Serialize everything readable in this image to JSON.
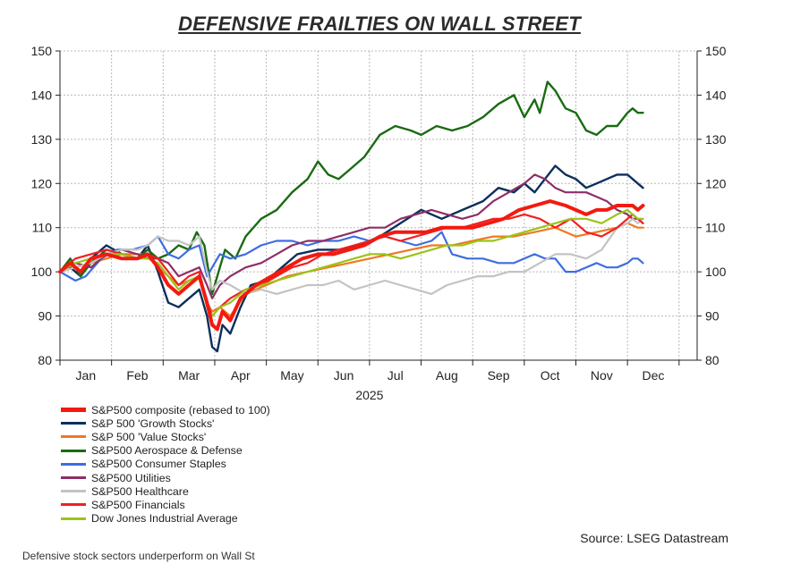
{
  "title": "DEFENSIVE FRAILTIES ON WALL STREET",
  "source": "Source: LSEG Datastream",
  "caption": "Defensive stock sectors underperform on Wall St",
  "chart_data": {
    "type": "line",
    "title": "DEFENSIVE FRAILTIES ON WALL STREET",
    "xlabel": "2025",
    "ylabel": "",
    "ylim": [
      80,
      150
    ],
    "yticks": [
      80,
      90,
      100,
      110,
      120,
      130,
      140,
      150
    ],
    "grid": true,
    "legend_position": "bottom-left",
    "x_range": [
      0,
      12.35
    ],
    "x_months": [
      "Jan",
      "Feb",
      "Mar",
      "Apr",
      "May",
      "Jun",
      "Jul",
      "Aug",
      "Sep",
      "Oct",
      "Nov",
      "Dec"
    ],
    "series": [
      {
        "name": "S&P 500 'Growth Stocks'",
        "color": "#0b2f5c",
        "width": 2.4,
        "x": [
          0.0,
          0.2,
          0.4,
          0.6,
          0.9,
          1.2,
          1.5,
          1.7,
          1.9,
          2.1,
          2.3,
          2.5,
          2.7,
          2.85,
          2.95,
          3.05,
          3.15,
          3.3,
          3.5,
          3.7,
          4.0,
          4.3,
          4.6,
          5.0,
          5.4,
          5.8,
          6.2,
          6.6,
          7.0,
          7.4,
          7.8,
          8.2,
          8.5,
          8.8,
          9.0,
          9.2,
          9.4,
          9.6,
          9.8,
          10.0,
          10.2,
          10.4,
          10.6,
          10.8,
          11.0,
          11.2,
          11.3
        ],
        "values": [
          100,
          101,
          99,
          103,
          106,
          104,
          103,
          106,
          100,
          93,
          92,
          94,
          96,
          90,
          83,
          82,
          88,
          86,
          92,
          97,
          98,
          101,
          104,
          105,
          105,
          106,
          108,
          111,
          114,
          112,
          114,
          116,
          119,
          118,
          120,
          118,
          121,
          124,
          122,
          121,
          119,
          120,
          121,
          122,
          122,
          120,
          119
        ]
      },
      {
        "name": "S&P 500 'Value Stocks'",
        "color": "#f07820",
        "width": 2.2,
        "x": [
          0.0,
          0.3,
          0.6,
          0.9,
          1.2,
          1.5,
          1.7,
          1.9,
          2.1,
          2.3,
          2.5,
          2.7,
          2.85,
          2.95,
          3.1,
          3.3,
          3.6,
          4.0,
          4.4,
          4.8,
          5.2,
          5.6,
          6.0,
          6.4,
          6.8,
          7.2,
          7.6,
          8.0,
          8.4,
          8.8,
          9.2,
          9.6,
          10.0,
          10.4,
          10.8,
          11.0,
          11.2,
          11.3
        ],
        "values": [
          100,
          101,
          102,
          103,
          104,
          104,
          104,
          101,
          99,
          97,
          98,
          99,
          93,
          91,
          92,
          90,
          95,
          97,
          99,
          100,
          101,
          102,
          103,
          104,
          105,
          106,
          106,
          107,
          108,
          108,
          109,
          110,
          108,
          109,
          110,
          111,
          110,
          110
        ]
      },
      {
        "name": "S&P500 Aerospace & Defense",
        "color": "#1a6b12",
        "width": 2.4,
        "x": [
          0.0,
          0.2,
          0.4,
          0.6,
          0.9,
          1.2,
          1.5,
          1.7,
          1.9,
          2.1,
          2.3,
          2.5,
          2.65,
          2.8,
          2.95,
          3.05,
          3.2,
          3.4,
          3.6,
          3.9,
          4.2,
          4.5,
          4.8,
          5.0,
          5.2,
          5.4,
          5.6,
          5.9,
          6.2,
          6.5,
          6.8,
          7.0,
          7.3,
          7.6,
          7.9,
          8.2,
          8.5,
          8.8,
          9.0,
          9.2,
          9.3,
          9.45,
          9.6,
          9.8,
          10.0,
          10.2,
          10.4,
          10.6,
          10.8,
          11.0,
          11.1,
          11.2,
          11.3
        ],
        "values": [
          100,
          103,
          99,
          102,
          105,
          104,
          103,
          105,
          103,
          104,
          106,
          105,
          109,
          106,
          95,
          99,
          105,
          103,
          108,
          112,
          114,
          118,
          121,
          125,
          122,
          121,
          123,
          126,
          131,
          133,
          132,
          131,
          133,
          132,
          133,
          135,
          138,
          140,
          135,
          139,
          136,
          143,
          141,
          137,
          136,
          132,
          131,
          133,
          133,
          136,
          137,
          136,
          136
        ]
      },
      {
        "name": "S&P500 Consumer Staples",
        "color": "#3d6de0",
        "width": 2.2,
        "x": [
          0.0,
          0.3,
          0.5,
          0.8,
          1.1,
          1.4,
          1.7,
          1.9,
          2.1,
          2.3,
          2.5,
          2.7,
          2.85,
          2.95,
          3.1,
          3.3,
          3.6,
          3.9,
          4.2,
          4.5,
          4.8,
          5.1,
          5.4,
          5.7,
          6.0,
          6.3,
          6.6,
          6.9,
          7.2,
          7.4,
          7.6,
          7.9,
          8.2,
          8.5,
          8.8,
          9.0,
          9.2,
          9.4,
          9.6,
          9.8,
          10.0,
          10.2,
          10.4,
          10.6,
          10.8,
          11.0,
          11.1,
          11.2,
          11.3
        ],
        "values": [
          100,
          98,
          99,
          103,
          105,
          105,
          106,
          108,
          104,
          103,
          105,
          106,
          99,
          101,
          104,
          103,
          104,
          106,
          107,
          107,
          106,
          107,
          107,
          108,
          107,
          108,
          107,
          106,
          107,
          109,
          104,
          103,
          103,
          102,
          102,
          103,
          104,
          103,
          103,
          100,
          100,
          101,
          102,
          101,
          101,
          102,
          103,
          103,
          102
        ]
      },
      {
        "name": "S&P500 Utilities",
        "color": "#8e2e66",
        "width": 2.2,
        "x": [
          0.0,
          0.3,
          0.6,
          0.9,
          1.2,
          1.5,
          1.7,
          1.9,
          2.1,
          2.3,
          2.5,
          2.7,
          2.85,
          2.95,
          3.1,
          3.3,
          3.6,
          3.9,
          4.2,
          4.5,
          4.8,
          5.1,
          5.4,
          5.7,
          6.0,
          6.3,
          6.6,
          6.9,
          7.2,
          7.5,
          7.8,
          8.1,
          8.4,
          8.7,
          9.0,
          9.2,
          9.4,
          9.6,
          9.8,
          10.0,
          10.2,
          10.4,
          10.6,
          10.8,
          11.0,
          11.1,
          11.2,
          11.3
        ],
        "values": [
          100,
          102,
          101,
          104,
          105,
          104,
          103,
          103,
          102,
          99,
          100,
          101,
          97,
          94,
          97,
          99,
          101,
          102,
          104,
          106,
          107,
          107,
          108,
          109,
          110,
          110,
          112,
          113,
          114,
          113,
          112,
          113,
          116,
          118,
          120,
          122,
          121,
          119,
          118,
          118,
          118,
          117,
          116,
          114,
          113,
          112,
          112,
          111
        ]
      },
      {
        "name": "S&P500 Healthcare",
        "color": "#c3c3c3",
        "width": 2.2,
        "x": [
          0.0,
          0.3,
          0.6,
          0.9,
          1.2,
          1.5,
          1.7,
          1.9,
          2.1,
          2.3,
          2.5,
          2.7,
          2.85,
          2.95,
          3.1,
          3.3,
          3.6,
          3.9,
          4.2,
          4.5,
          4.8,
          5.1,
          5.4,
          5.7,
          6.0,
          6.3,
          6.6,
          6.9,
          7.2,
          7.5,
          7.8,
          8.1,
          8.4,
          8.7,
          9.0,
          9.3,
          9.6,
          9.9,
          10.2,
          10.5,
          10.8,
          11.0,
          11.1,
          11.2,
          11.3
        ],
        "values": [
          100,
          101,
          102,
          104,
          105,
          105,
          106,
          108,
          107,
          107,
          106,
          108,
          100,
          96,
          98,
          97,
          95,
          96,
          95,
          96,
          97,
          97,
          98,
          96,
          97,
          98,
          97,
          96,
          95,
          97,
          98,
          99,
          99,
          100,
          100,
          102,
          104,
          104,
          103,
          105,
          110,
          111,
          112,
          111,
          112
        ]
      },
      {
        "name": "S&P500 Financials",
        "color": "#f02020",
        "width": 2.2,
        "x": [
          0.0,
          0.3,
          0.6,
          0.9,
          1.2,
          1.5,
          1.7,
          1.9,
          2.1,
          2.3,
          2.5,
          2.7,
          2.85,
          2.95,
          3.1,
          3.3,
          3.6,
          3.9,
          4.2,
          4.5,
          4.8,
          5.1,
          5.4,
          5.7,
          6.0,
          6.3,
          6.6,
          6.9,
          7.2,
          7.5,
          7.8,
          8.1,
          8.4,
          8.7,
          9.0,
          9.3,
          9.6,
          9.9,
          10.2,
          10.5,
          10.8,
          11.0,
          11.1,
          11.2,
          11.3
        ],
        "values": [
          100,
          103,
          104,
          105,
          104,
          103,
          104,
          103,
          100,
          97,
          99,
          100,
          93,
          90,
          92,
          94,
          96,
          97,
          99,
          101,
          102,
          104,
          105,
          106,
          107,
          108,
          107,
          108,
          109,
          110,
          110,
          111,
          112,
          112,
          113,
          112,
          110,
          112,
          109,
          108,
          110,
          112,
          113,
          112,
          111
        ]
      },
      {
        "name": "Dow Jones Industrial Average",
        "color": "#9ac418",
        "width": 2.2,
        "x": [
          0.0,
          0.3,
          0.6,
          0.9,
          1.2,
          1.5,
          1.7,
          1.9,
          2.1,
          2.3,
          2.5,
          2.7,
          2.85,
          2.95,
          3.1,
          3.3,
          3.6,
          3.9,
          4.2,
          4.5,
          4.8,
          5.1,
          5.4,
          5.7,
          6.0,
          6.3,
          6.6,
          6.9,
          7.2,
          7.5,
          7.8,
          8.1,
          8.4,
          8.7,
          9.0,
          9.3,
          9.6,
          9.9,
          10.2,
          10.5,
          10.8,
          11.0,
          11.1,
          11.2,
          11.3
        ],
        "values": [
          100,
          102,
          103,
          104,
          104,
          103,
          103,
          102,
          99,
          96,
          98,
          99,
          92,
          90,
          92,
          93,
          96,
          97,
          98,
          99,
          100,
          101,
          102,
          103,
          104,
          104,
          103,
          104,
          105,
          106,
          106,
          107,
          107,
          108,
          109,
          110,
          111,
          112,
          112,
          111,
          113,
          114,
          113,
          112,
          112
        ]
      },
      {
        "name": "S&P500 composite (rebased to 100)",
        "color": "#f21a10",
        "width": 4,
        "x": [
          0.0,
          0.2,
          0.4,
          0.6,
          0.9,
          1.2,
          1.5,
          1.7,
          1.9,
          2.1,
          2.3,
          2.5,
          2.7,
          2.85,
          2.95,
          3.05,
          3.15,
          3.3,
          3.5,
          3.8,
          4.1,
          4.4,
          4.7,
          5.0,
          5.3,
          5.6,
          5.9,
          6.2,
          6.5,
          6.8,
          7.1,
          7.4,
          7.7,
          8.0,
          8.3,
          8.6,
          8.9,
          9.2,
          9.5,
          9.8,
          10.0,
          10.2,
          10.4,
          10.6,
          10.8,
          11.0,
          11.1,
          11.2,
          11.3
        ],
        "values": [
          100,
          102,
          100,
          103,
          104,
          103,
          103,
          104,
          101,
          97,
          95,
          97,
          99,
          93,
          88,
          87,
          91,
          89,
          94,
          97,
          99,
          101,
          103,
          104,
          104,
          105,
          106,
          108,
          109,
          109,
          109,
          110,
          110,
          110,
          111,
          112,
          114,
          115,
          116,
          115,
          114,
          113,
          114,
          114,
          115,
          115,
          115,
          114,
          115
        ]
      }
    ],
    "legend": [
      {
        "name": "S&P500 composite (rebased to 100)",
        "color": "#f21a10",
        "thick": true
      },
      {
        "name": "S&P 500 'Growth Stocks'",
        "color": "#0b2f5c"
      },
      {
        "name": "S&P 500 'Value Stocks'",
        "color": "#f07820"
      },
      {
        "name": "S&P500 Aerospace & Defense",
        "color": "#1a6b12"
      },
      {
        "name": "S&P500 Consumer Staples",
        "color": "#3d6de0"
      },
      {
        "name": "S&P500 Utilities",
        "color": "#8e2e66"
      },
      {
        "name": "S&P500 Healthcare",
        "color": "#c3c3c3"
      },
      {
        "name": "S&P500 Financials",
        "color": "#f02020"
      },
      {
        "name": "Dow Jones Industrial Average",
        "color": "#9ac418"
      }
    ]
  }
}
